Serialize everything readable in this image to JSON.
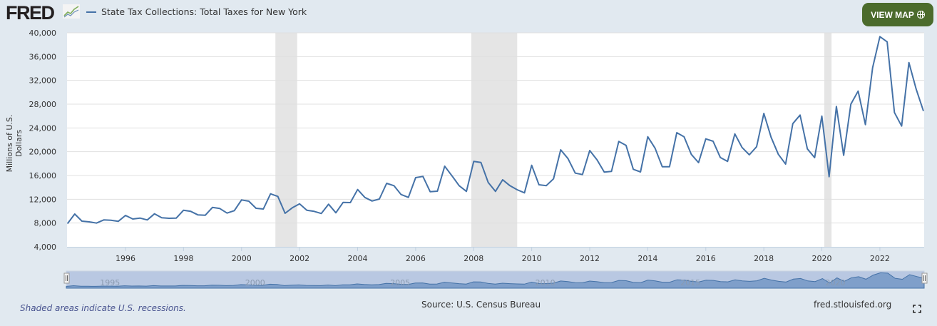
{
  "header": {
    "logo_text": "FRED",
    "legend_label": "State Tax Collections: Total Taxes for New York",
    "view_map_label": "VIEW MAP",
    "view_map_icon": "globe-icon",
    "button_color": "#4b6b2c"
  },
  "footer": {
    "recession_note": "Shaded areas indicate U.S. recessions.",
    "source": "Source: U.S. Census Bureau",
    "site": "fred.stlouisfed.org",
    "fullscreen_icon": "fullscreen-icon"
  },
  "chart_data": {
    "type": "line",
    "title": "",
    "xlabel": "",
    "ylabel": "Millions of U.S. Dollars",
    "frequency": "quarterly",
    "start": "1994Q1",
    "end": "2023Q3",
    "ylim": [
      4000,
      40000
    ],
    "y_ticks": [
      "4,000",
      "8,000",
      "12,000",
      "16,000",
      "20,000",
      "24,000",
      "28,000",
      "32,000",
      "36,000",
      "40,000"
    ],
    "x_ticks": [
      "1996",
      "1998",
      "2000",
      "2002",
      "2004",
      "2006",
      "2008",
      "2010",
      "2012",
      "2014",
      "2016",
      "2018",
      "2020",
      "2022"
    ],
    "navigator_labels": [
      "1995",
      "2000",
      "2005",
      "2010",
      "2015",
      "2020"
    ],
    "grid": true,
    "line_color": "#4572a7",
    "recession_color": "#e5e5e5",
    "recessions": [
      [
        "2001-03",
        "2001-11"
      ],
      [
        "2007-12",
        "2009-06"
      ],
      [
        "2020-02",
        "2020-04"
      ]
    ],
    "series": [
      {
        "name": "State Tax Collections: Total Taxes for New York",
        "values": [
          7900,
          9520,
          8320,
          8200,
          8000,
          8520,
          8480,
          8280,
          9280,
          8680,
          8840,
          8520,
          9560,
          8880,
          8800,
          8840,
          10160,
          9960,
          9360,
          9320,
          10640,
          10440,
          9680,
          10080,
          11880,
          11680,
          10480,
          10360,
          12920,
          12480,
          9640,
          10560,
          11240,
          10160,
          9960,
          9600,
          11160,
          9720,
          11480,
          11440,
          13640,
          12300,
          11700,
          12040,
          14680,
          14280,
          12800,
          12320,
          15640,
          15840,
          13280,
          13360,
          17560,
          15960,
          14280,
          13320,
          18360,
          18200,
          14840,
          13320,
          15280,
          14280,
          13600,
          13080,
          17720,
          14440,
          14280,
          15440,
          20320,
          18840,
          16400,
          16160,
          20200,
          18640,
          16560,
          16680,
          21720,
          21080,
          17040,
          16600,
          22520,
          20600,
          17480,
          17480,
          23200,
          22520,
          19560,
          18160,
          22160,
          21760,
          19040,
          18360,
          23000,
          20720,
          19480,
          20840,
          26440,
          22440,
          19560,
          17920,
          24720,
          26160,
          20480,
          19000,
          26000,
          15800,
          27600,
          19400,
          28000,
          30200,
          24560,
          34120,
          39360,
          38480,
          26600,
          24320,
          35000,
          30520,
          26840
        ]
      }
    ]
  }
}
